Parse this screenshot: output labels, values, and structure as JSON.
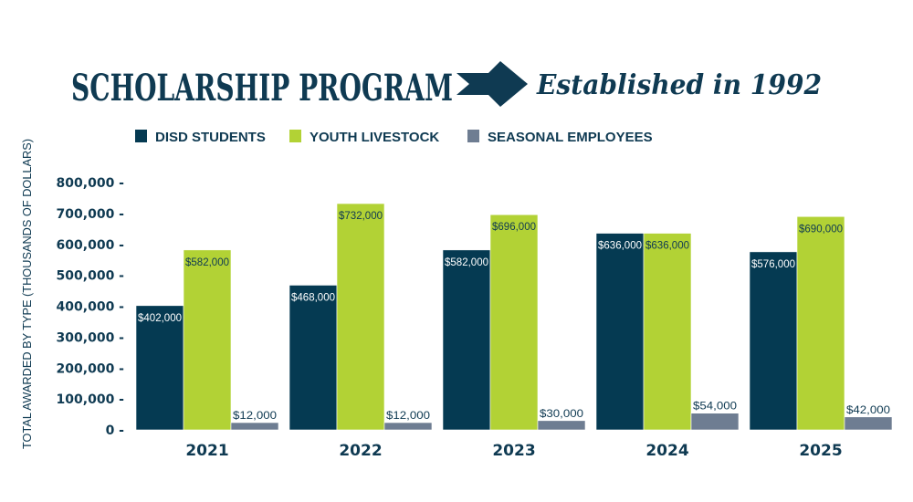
{
  "chart_data": {
    "type": "bar",
    "title": "SCHOLARSHIP PROGRAM",
    "subtitle": "Established in 1992",
    "xlabel": "",
    "ylabel": "TOTAL AWARDED BY TYPE (THOUSANDS OF DOLLARS)",
    "ylim": [
      0,
      800000
    ],
    "yticks": [
      "800,000 -",
      "700,000 -",
      "600,000 -",
      "500,000 -",
      "400,000 -",
      "300,000 -",
      "200,000 -",
      "100,000 -",
      "0 -"
    ],
    "ytick_values": [
      800000,
      700000,
      600000,
      500000,
      400000,
      300000,
      200000,
      100000,
      0
    ],
    "categories": [
      "2021",
      "2022",
      "2023",
      "2024",
      "2025"
    ],
    "legend_position": "top",
    "series": [
      {
        "name": "DISD STUDENTS",
        "color": "#053a52",
        "label_color": "#ffffff",
        "values": [
          402000,
          468000,
          582000,
          636000,
          576000
        ],
        "labels": [
          "$402,000",
          "$468,000",
          "$582,000",
          "$636,000",
          "$576,000"
        ]
      },
      {
        "name": "YOUTH LIVESTOCK",
        "color": "#b2d235",
        "label_color": "#0f3a52",
        "values": [
          582000,
          732000,
          696000,
          636000,
          690000
        ],
        "labels": [
          "$582,000",
          "$732,000",
          "$696,000",
          "$636,000",
          "$690,000"
        ]
      },
      {
        "name": "SEASONAL EMPLOYEES",
        "color": "#6e7d92",
        "label_color": "#0f3a52",
        "values": [
          12000,
          12000,
          30000,
          54000,
          42000
        ],
        "labels": [
          "$12,000",
          "$12,000",
          "$30,000",
          "$54,000",
          "$42,000"
        ]
      }
    ]
  }
}
